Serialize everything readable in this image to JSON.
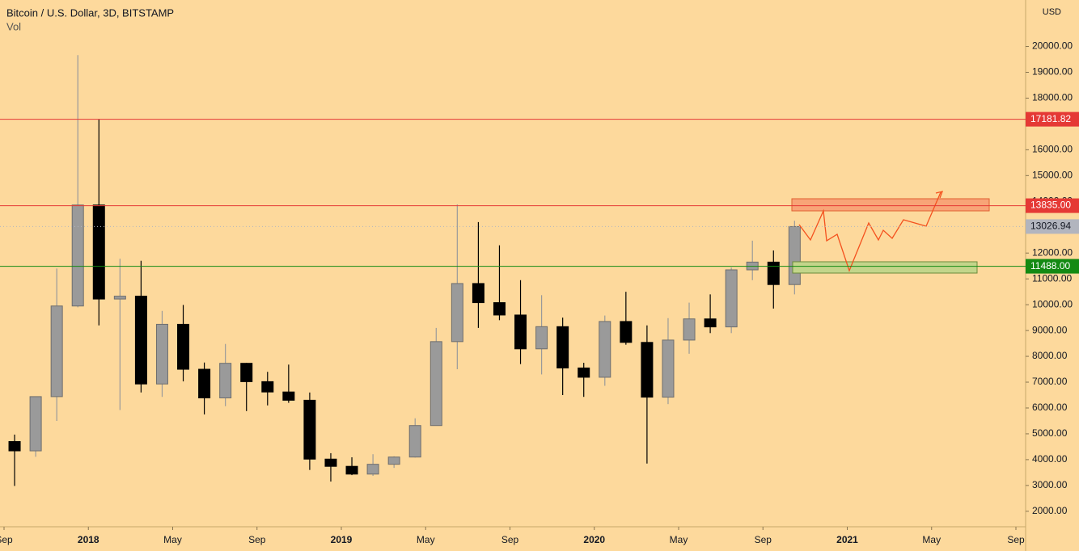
{
  "chart_data": {
    "type": "candlestick",
    "title": "Bitcoin / U.S. Dollar, 3D, BITSTAMP",
    "subtitle": "Vol",
    "axis_label": "USD",
    "x": [
      "2017-09",
      "2017-10",
      "2017-11",
      "2017-12",
      "2018-01",
      "2018-02",
      "2018-03",
      "2018-04",
      "2018-05",
      "2018-06",
      "2018-07",
      "2018-08",
      "2018-09",
      "2018-10",
      "2018-11",
      "2018-12",
      "2019-01",
      "2019-02",
      "2019-03",
      "2019-04",
      "2019-05",
      "2019-06",
      "2019-07",
      "2019-08",
      "2019-09",
      "2019-10",
      "2019-11",
      "2019-12",
      "2020-01",
      "2020-02",
      "2020-03",
      "2020-04",
      "2020-05",
      "2020-06",
      "2020-07",
      "2020-08",
      "2020-09",
      "2020-10"
    ],
    "open": [
      4700,
      4340,
      6440,
      9950,
      13860,
      10220,
      10330,
      6930,
      9240,
      7500,
      6390,
      7730,
      7020,
      6620,
      6300,
      4020,
      3740,
      3440,
      3820,
      4100,
      5320,
      8570,
      10820,
      10080,
      9600,
      8290,
      9150,
      7550,
      7190,
      9350,
      8540,
      6420,
      8630,
      9450,
      9140,
      11350,
      11650,
      10780
    ],
    "high": [
      4970,
      6450,
      11400,
      19666,
      17170,
      11780,
      11700,
      9760,
      9990,
      7760,
      8480,
      7750,
      7400,
      7680,
      6600,
      4250,
      4090,
      4210,
      4130,
      5600,
      9100,
      13880,
      13200,
      12300,
      10950,
      10370,
      9500,
      7750,
      9580,
      10500,
      9200,
      9480,
      10080,
      10400,
      11440,
      12480,
      12100,
      13250
    ],
    "low": [
      2980,
      4110,
      5500,
      9900,
      9200,
      5920,
      6600,
      6430,
      7030,
      5750,
      6070,
      5880,
      6100,
      6200,
      3600,
      3150,
      3400,
      3370,
      3680,
      4080,
      5330,
      7500,
      9100,
      9400,
      7700,
      7300,
      6500,
      6430,
      6860,
      8450,
      3850,
      6150,
      8100,
      8900,
      8900,
      10950,
      9850,
      10400
    ],
    "close": [
      4340,
      6440,
      9950,
      13860,
      10220,
      10330,
      6930,
      9240,
      7500,
      6390,
      7730,
      7020,
      6620,
      6300,
      4020,
      3740,
      3440,
      3820,
      4100,
      5320,
      8570,
      10820,
      10080,
      9600,
      8290,
      9150,
      7550,
      7190,
      9350,
      8540,
      6420,
      8630,
      9450,
      9140,
      11350,
      11650,
      10780,
      13026.94
    ],
    "up_color": "#9a9a9a",
    "down_color": "#000000",
    "ylim": [
      1400,
      21800
    ],
    "yticks": [
      {
        "value": 2000,
        "label": "2000.00"
      },
      {
        "value": 3000,
        "label": "3000.00"
      },
      {
        "value": 4000,
        "label": "4000.00"
      },
      {
        "value": 5000,
        "label": "5000.00"
      },
      {
        "value": 6000,
        "label": "6000.00"
      },
      {
        "value": 7000,
        "label": "7000.00"
      },
      {
        "value": 8000,
        "label": "8000.00"
      },
      {
        "value": 9000,
        "label": "9000.00"
      },
      {
        "value": 10000,
        "label": "10000.00"
      },
      {
        "value": 11000,
        "label": "11000.00"
      },
      {
        "value": 12000,
        "label": "12000.00"
      },
      {
        "value": 13000,
        "label": "13000.00"
      },
      {
        "value": 14000,
        "label": "14000.00"
      },
      {
        "value": 15000,
        "label": "15000.00"
      },
      {
        "value": 16000,
        "label": "16000.00"
      },
      {
        "value": 17000,
        "label": "17000.00"
      },
      {
        "value": 18000,
        "label": "18000.00"
      },
      {
        "value": 19000,
        "label": "19000.00"
      },
      {
        "value": 20000,
        "label": "20000.00"
      }
    ],
    "xlim": [
      "2017-09",
      "2021-09"
    ],
    "xticks": [
      {
        "value": "2017-09",
        "label": "Sep"
      },
      {
        "value": "2018-01",
        "label": "2018"
      },
      {
        "value": "2018-05",
        "label": "May"
      },
      {
        "value": "2018-09",
        "label": "Sep"
      },
      {
        "value": "2019-01",
        "label": "2019"
      },
      {
        "value": "2019-05",
        "label": "May"
      },
      {
        "value": "2019-09",
        "label": "Sep"
      },
      {
        "value": "2020-01",
        "label": "2020"
      },
      {
        "value": "2020-05",
        "label": "May"
      },
      {
        "value": "2020-09",
        "label": "Sep"
      },
      {
        "value": "2021-01",
        "label": "2021"
      },
      {
        "value": "2021-05",
        "label": "May"
      },
      {
        "value": "2021-09",
        "label": "Sep"
      }
    ],
    "levels": [
      {
        "value": 17181.82,
        "color": "#e53935",
        "line": "solid"
      },
      {
        "value": 13835,
        "label": "13835.00",
        "color": "#e53935",
        "line": "solid"
      },
      {
        "value": 13026.94,
        "color": "#b2b5be",
        "line": "dotted"
      },
      {
        "value": 11488,
        "label": "11488.00",
        "color": "#138a13",
        "line": "solid"
      }
    ]
  }
}
